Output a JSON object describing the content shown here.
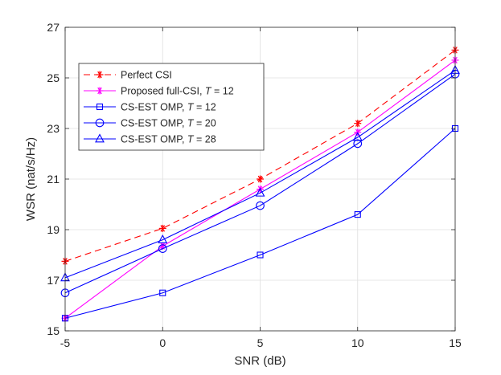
{
  "chart_data": {
    "type": "line",
    "title": "",
    "xlabel": "SNR (dB)",
    "ylabel": "WSR (nat/s/Hz)",
    "xlim": [
      -5,
      15
    ],
    "ylim": [
      15,
      27
    ],
    "x": [
      -5,
      0,
      5,
      10,
      15
    ],
    "xticks": [
      -5,
      0,
      5,
      10,
      15
    ],
    "yticks": [
      15,
      17,
      19,
      21,
      23,
      25,
      27
    ],
    "grid": true,
    "legend_position": "top-left",
    "series": [
      {
        "name": "Perfect CSI",
        "label_main": "Perfect CSI",
        "label_var": "",
        "label_suffix": "",
        "values": [
          17.75,
          19.05,
          21.0,
          23.2,
          26.1
        ],
        "color": "#ff0000",
        "marker": "asterisk",
        "dash": "8,5"
      },
      {
        "name": "Proposed full-CSI, T = 12",
        "label_main": "Proposed full-CSI, ",
        "label_var": "T",
        "label_suffix": " = 12",
        "values": [
          15.5,
          18.35,
          20.6,
          22.85,
          25.7
        ],
        "color": "#ff00ff",
        "marker": "asterisk",
        "dash": ""
      },
      {
        "name": "CS-EST OMP, T = 12",
        "label_main": "CS-EST OMP, ",
        "label_var": "T",
        "label_suffix": " = 12",
        "values": [
          15.5,
          16.5,
          18.0,
          19.6,
          23.0
        ],
        "color": "#0000ff",
        "marker": "square",
        "dash": ""
      },
      {
        "name": "CS-EST OMP, T = 20",
        "label_main": "CS-EST OMP, ",
        "label_var": "T",
        "label_suffix": " = 20",
        "values": [
          16.5,
          18.25,
          19.95,
          22.4,
          25.15
        ],
        "color": "#0000ff",
        "marker": "circle",
        "dash": ""
      },
      {
        "name": "CS-EST OMP, T = 28",
        "label_main": "CS-EST OMP, ",
        "label_var": "T",
        "label_suffix": " = 28",
        "values": [
          17.1,
          18.6,
          20.45,
          22.65,
          25.3
        ],
        "color": "#0000ff",
        "marker": "triangle",
        "dash": ""
      }
    ]
  }
}
